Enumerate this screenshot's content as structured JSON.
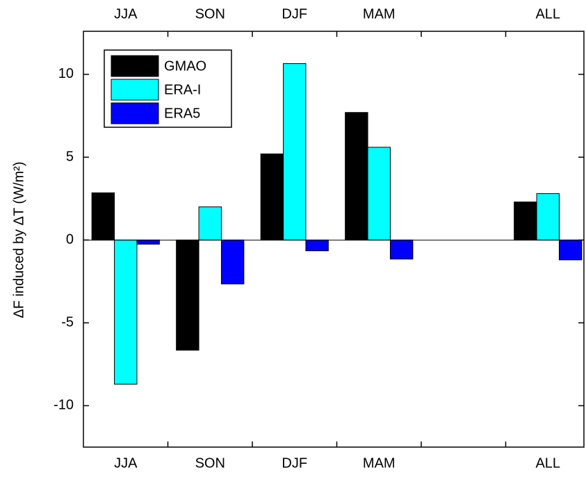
{
  "chart_data": {
    "type": "bar",
    "y_label": "ΔF induced by ΔT (W/m²)",
    "categories": [
      "JJA",
      "SON",
      "DJF",
      "MAM",
      null,
      "ALL"
    ],
    "series": [
      {
        "name": "GMAO",
        "color": "#000000",
        "values": [
          2.85,
          -6.65,
          5.2,
          7.7,
          null,
          2.3
        ]
      },
      {
        "name": "ERA-I",
        "color": "#00ffff",
        "values": [
          -8.7,
          2.0,
          10.65,
          5.6,
          null,
          2.8
        ]
      },
      {
        "name": "ERA5",
        "color": "#0000ff",
        "values": [
          -0.25,
          -2.65,
          -0.65,
          -1.15,
          null,
          -1.2
        ]
      }
    ],
    "ylim": [
      -12.5,
      12.6
    ],
    "yticks": [
      -10,
      -5,
      0,
      5,
      10
    ],
    "legend": "upper left"
  }
}
